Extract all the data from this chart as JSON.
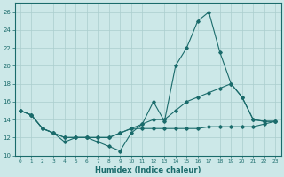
{
  "title": "",
  "xlabel": "Humidex (Indice chaleur)",
  "ylabel": "",
  "bg_color": "#cce8e8",
  "line_color": "#1a6b6b",
  "grid_color": "#aacece",
  "xlim": [
    -0.5,
    23.5
  ],
  "ylim": [
    10,
    27
  ],
  "yticks": [
    10,
    12,
    14,
    16,
    18,
    20,
    22,
    24,
    26
  ],
  "xticks": [
    0,
    1,
    2,
    3,
    4,
    5,
    6,
    7,
    8,
    9,
    10,
    11,
    12,
    13,
    14,
    15,
    16,
    17,
    18,
    19,
    20,
    21,
    22,
    23
  ],
  "lines": [
    {
      "x": [
        0,
        1,
        2,
        3,
        4,
        5,
        6,
        7,
        8,
        9,
        10,
        11,
        12,
        13,
        14,
        15,
        16,
        17,
        18,
        19,
        20,
        21,
        22,
        23
      ],
      "y": [
        15.0,
        14.5,
        13.0,
        12.5,
        11.5,
        12.0,
        12.0,
        11.5,
        11.0,
        10.5,
        12.5,
        13.5,
        16.0,
        13.8,
        20.0,
        22.0,
        25.0,
        26.0,
        21.5,
        18.0,
        16.5,
        14.0,
        13.8,
        13.8
      ]
    },
    {
      "x": [
        0,
        1,
        2,
        3,
        4,
        5,
        6,
        7,
        8,
        9,
        10,
        11,
        12,
        13,
        14,
        15,
        16,
        17,
        18,
        19,
        20,
        21,
        22,
        23
      ],
      "y": [
        15.0,
        14.5,
        13.0,
        12.5,
        12.0,
        12.0,
        12.0,
        12.0,
        12.0,
        12.5,
        13.0,
        13.5,
        14.0,
        14.0,
        15.0,
        16.0,
        16.5,
        17.0,
        17.5,
        18.0,
        16.5,
        14.0,
        13.8,
        13.8
      ]
    },
    {
      "x": [
        0,
        1,
        2,
        3,
        4,
        5,
        6,
        7,
        8,
        9,
        10,
        11,
        12,
        13,
        14,
        15,
        16,
        17,
        18,
        19,
        20,
        21,
        22,
        23
      ],
      "y": [
        15.0,
        14.5,
        13.0,
        12.5,
        12.0,
        12.0,
        12.0,
        12.0,
        12.0,
        12.5,
        13.0,
        13.0,
        13.0,
        13.0,
        13.0,
        13.0,
        13.0,
        13.2,
        13.2,
        13.2,
        13.2,
        13.2,
        13.5,
        13.8
      ]
    }
  ]
}
